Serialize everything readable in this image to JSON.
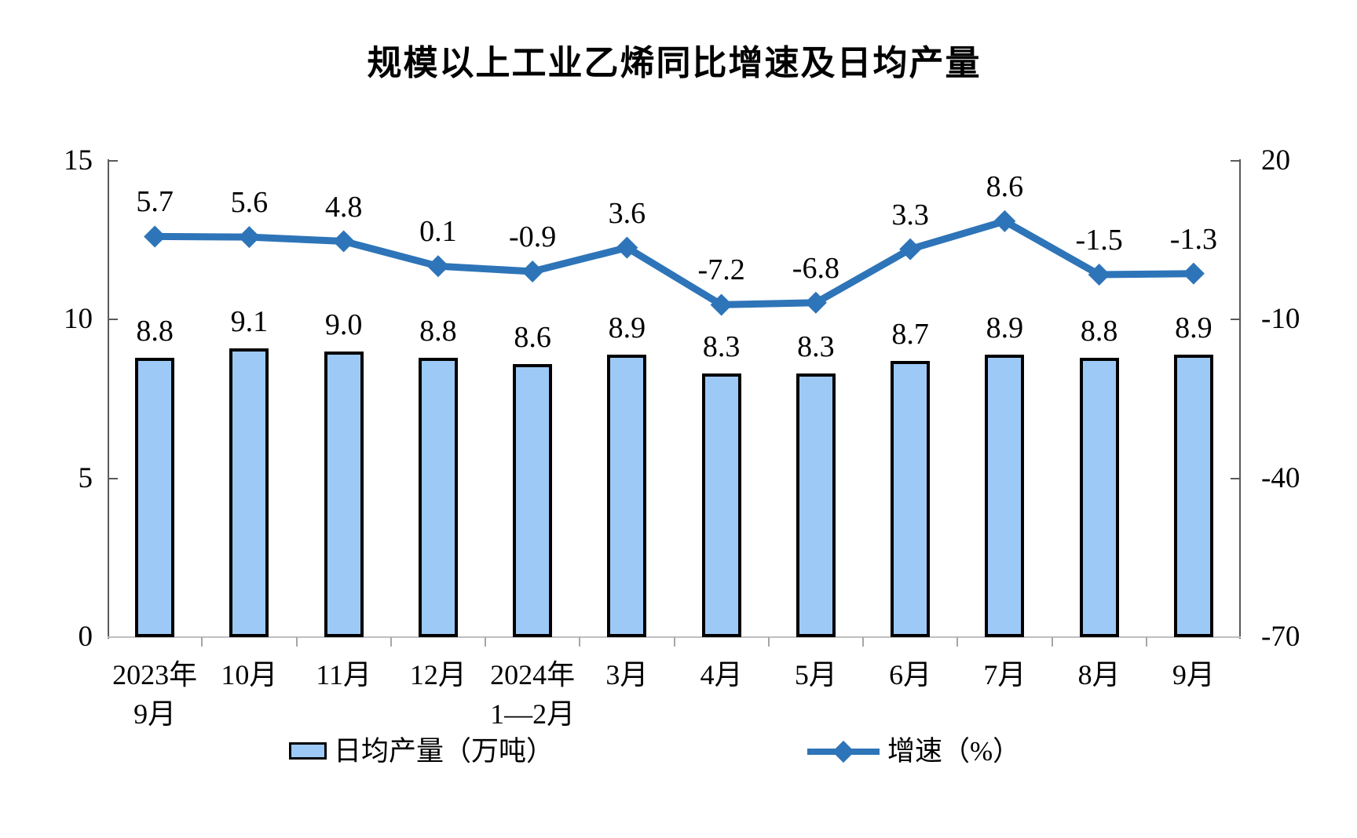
{
  "title": "规模以上工业乙烯同比增速及日均产量",
  "legend": {
    "bar_label": "日均产量（万吨）",
    "line_label": "增速（%）"
  },
  "chart_data": {
    "type": "combo-bar-line",
    "title": "规模以上工业乙烯同比增速及日均产量",
    "categories": [
      [
        "2023年",
        "9月"
      ],
      [
        "10月"
      ],
      [
        "11月"
      ],
      [
        "12月"
      ],
      [
        "2024年",
        "1—2月"
      ],
      [
        "3月"
      ],
      [
        "4月"
      ],
      [
        "5月"
      ],
      [
        "6月"
      ],
      [
        "7月"
      ],
      [
        "8月"
      ],
      [
        "9月"
      ]
    ],
    "series": [
      {
        "name": "日均产量（万吨）",
        "type": "bar",
        "axis": "left",
        "values": [
          8.8,
          9.1,
          9.0,
          8.8,
          8.6,
          8.9,
          8.3,
          8.3,
          8.7,
          8.9,
          8.8,
          8.9
        ]
      },
      {
        "name": "增速（%）",
        "type": "line",
        "axis": "right",
        "values": [
          5.7,
          5.6,
          4.8,
          0.1,
          -0.9,
          3.6,
          -7.2,
          -6.8,
          3.3,
          8.6,
          -1.5,
          -1.3
        ]
      }
    ],
    "left_axis": {
      "range": [
        0,
        15
      ],
      "ticks": [
        0,
        5,
        10,
        15
      ],
      "tick_labels": [
        "0",
        "5",
        "10",
        "15"
      ]
    },
    "right_axis": {
      "range": [
        -70,
        20
      ],
      "ticks": [
        -70,
        -40,
        -10,
        20
      ],
      "tick_labels": [
        "-70",
        "-40",
        "-10",
        "20"
      ]
    },
    "grid": false,
    "legend_position": "bottom",
    "colors": {
      "bar_fill": "#9DC9F7",
      "bar_border": "#000000",
      "line": "#2E74B8",
      "axis": "#595959",
      "baseline": "#BFBFBF"
    }
  }
}
